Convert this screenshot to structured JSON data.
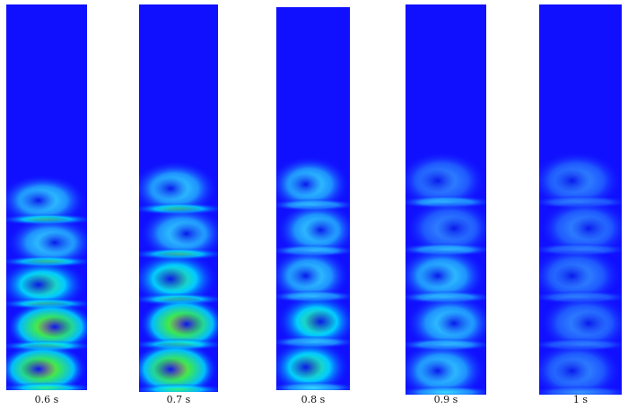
{
  "panels": [
    {
      "label": "0.6 s"
    },
    {
      "label": "0.7 s"
    },
    {
      "label": "0.8 s"
    },
    {
      "label": "0.9 s"
    },
    {
      "label": "1 s"
    }
  ]
}
